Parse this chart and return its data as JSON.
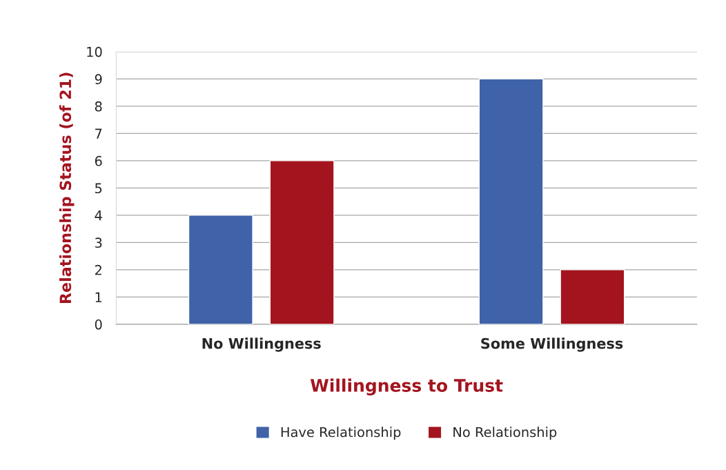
{
  "chart_data": {
    "type": "bar",
    "categories": [
      "No Willingness",
      "Some Willingness"
    ],
    "series": [
      {
        "name": "Have Relationship",
        "color": "#4062a8",
        "values": [
          4,
          9
        ]
      },
      {
        "name": "No Relationship",
        "color": "#a3141f",
        "values": [
          6,
          2
        ]
      }
    ],
    "xlabel": "Willingness to Trust",
    "ylabel": "Relationship Status (of 21)",
    "ylim": [
      0,
      10
    ],
    "yticks": [
      0,
      1,
      2,
      3,
      4,
      5,
      6,
      7,
      8,
      9,
      10
    ],
    "grid": "y",
    "legend": "bottom"
  }
}
